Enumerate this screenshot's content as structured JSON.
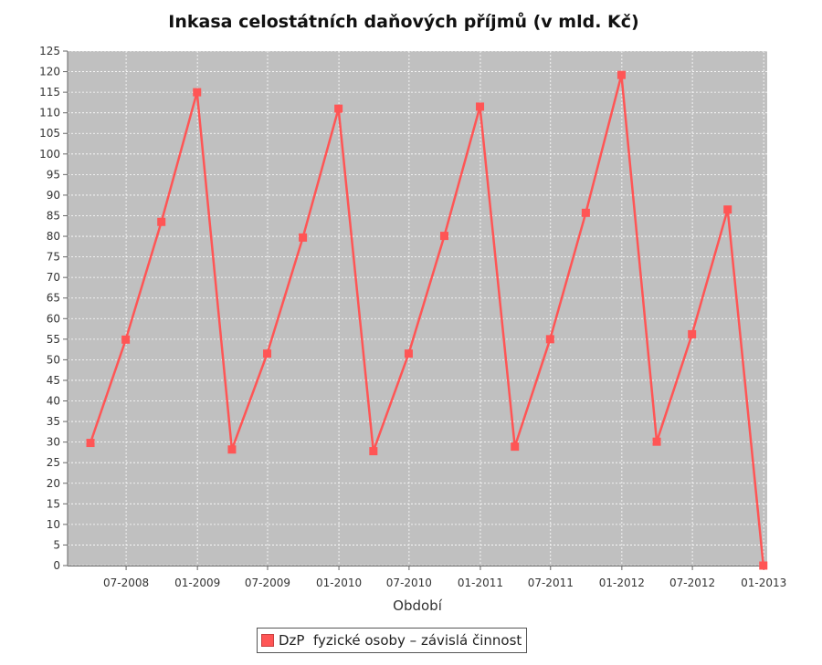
{
  "chart_data": {
    "type": "line",
    "title": "Inkasa celostátních daňových příjmů (v mld. Kč)",
    "xlabel": "Období",
    "ylabel": "",
    "ylim": [
      0,
      125
    ],
    "yticks": [
      0,
      5,
      10,
      15,
      20,
      25,
      30,
      35,
      40,
      45,
      50,
      55,
      60,
      65,
      70,
      75,
      80,
      85,
      90,
      95,
      100,
      105,
      110,
      115,
      120,
      125
    ],
    "xticks": [
      "07-2008",
      "01-2009",
      "07-2009",
      "01-2010",
      "07-2010",
      "01-2011",
      "07-2011",
      "01-2012",
      "07-2012",
      "01-2013"
    ],
    "grid": true,
    "legend_position": "bottom",
    "colors": {
      "series": "#ff5555",
      "plot_background": "#c0c0c0",
      "grid": "#ffffff"
    },
    "x": [
      "2008-03-31",
      "2008-06-30",
      "2008-09-30",
      "2008-12-31",
      "2009-03-31",
      "2009-06-30",
      "2009-09-30",
      "2009-12-31",
      "2010-03-31",
      "2010-06-30",
      "2010-09-30",
      "2010-12-31",
      "2011-03-31",
      "2011-06-30",
      "2011-09-30",
      "2011-12-31",
      "2012-03-31",
      "2012-06-30",
      "2012-09-30",
      "2012-12-31"
    ],
    "series": [
      {
        "name": "DzP  fyzické osoby – závislá činnost",
        "values": [
          29.8,
          54.9,
          83.5,
          115.0,
          28.2,
          51.5,
          79.7,
          111.0,
          27.8,
          51.5,
          80.1,
          111.5,
          28.9,
          55.0,
          85.7,
          119.2,
          30.1,
          56.2,
          86.5,
          0.0
        ]
      }
    ]
  }
}
